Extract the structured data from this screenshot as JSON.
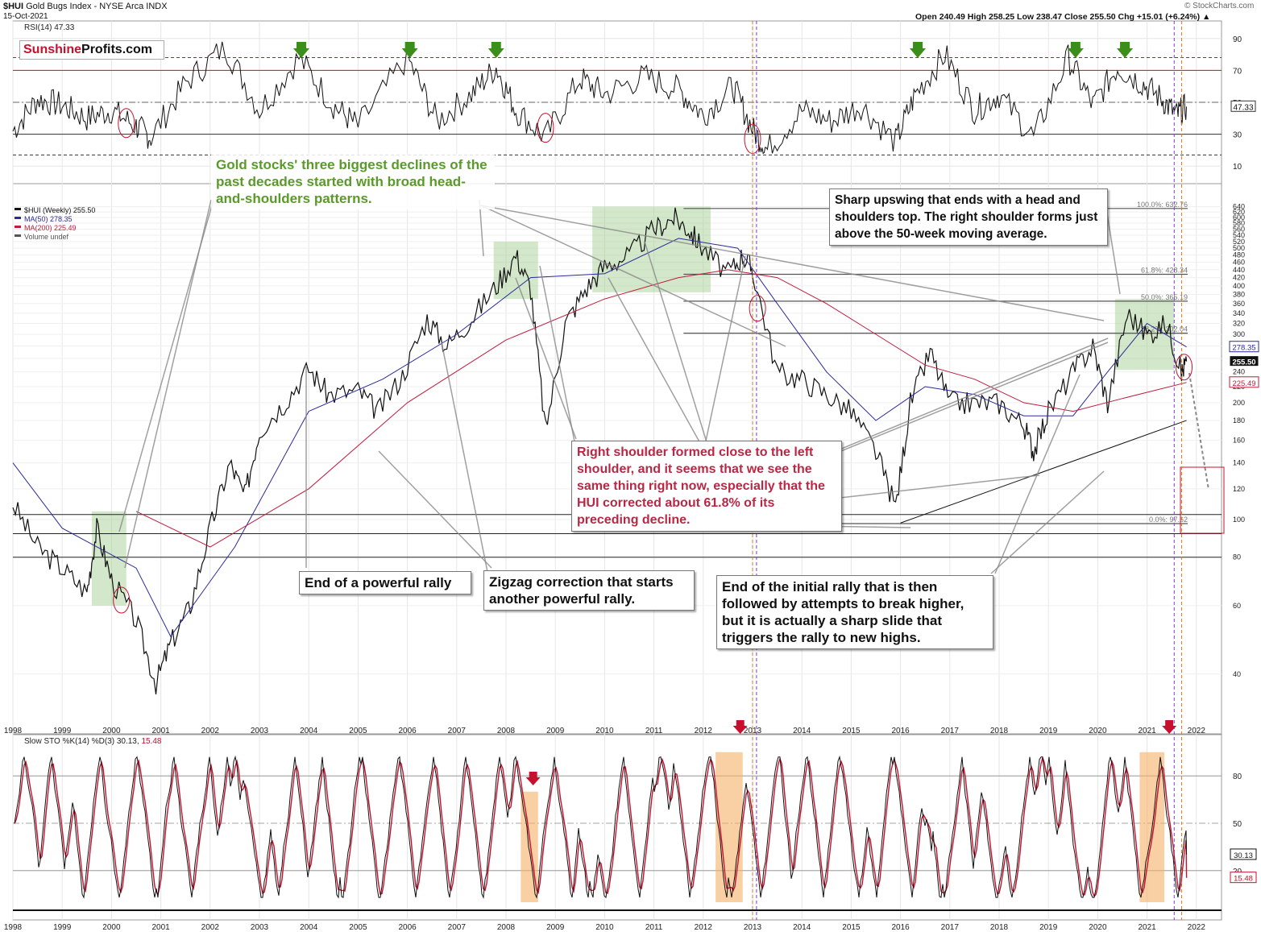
{
  "header": {
    "symbol": "$HUI",
    "name": "Gold Bugs Index - NYSE Arca INDX",
    "date": "15-Oct-2021",
    "ohlc": "Open 240.49  High 258.25  Low 238.47  Close 255.50  Chg +15.01 (+6.24%) ▲",
    "source": "© StockCharts.com"
  },
  "logo": {
    "part1": "Sunshine",
    "part2": "Profits.com"
  },
  "colors": {
    "price": "#111111",
    "ma50": "#2a2a9a",
    "ma200": "#c01c3c",
    "zone_green": "#9ec98a",
    "zone_orange": "#f5b067",
    "arrow_green": "#3a8f1a",
    "arrow_red": "#c8102e",
    "rsi": "#111111",
    "stoch_k": "#111111",
    "stoch_d": "#c8102e"
  },
  "rsi_panel": {
    "label": "RSI(14) 47.33",
    "last_value": "47.33",
    "ticks": [
      "90",
      "70",
      "50",
      "30",
      "10"
    ],
    "overbought": 70,
    "oversold": 30
  },
  "price_panel": {
    "legend": [
      "$HUI (Weekly) 255.50",
      "MA(50) 278.35",
      "MA(200) 225.49",
      "Volume undef"
    ],
    "price_ticks": [
      "640",
      "620",
      "600",
      "580",
      "560",
      "540",
      "520",
      "500",
      "480",
      "460",
      "440",
      "420",
      "400",
      "380",
      "360",
      "340",
      "320",
      "300",
      "280",
      "260",
      "240",
      "220",
      "200",
      "180",
      "160",
      "140",
      "120",
      "100",
      "80",
      "60",
      "40"
    ],
    "last_price": "255.50",
    "ma50_value": "278.35",
    "ma200_value": "225.49",
    "fib_labels": [
      "100.0%: 632.76",
      "61.8%: 428.34",
      "50.0%: 365.19",
      "38.2%: 302.04",
      "0.0%: 97.62"
    ]
  },
  "stoch_panel": {
    "label": "Slow STO %K(14) %D(3) 30.13, 15.48",
    "label_main": "Slow STO %K(14) %D(3) 30.13, ",
    "label_d": "15.48",
    "k_value": "30.13",
    "d_value": "15.48",
    "ticks": [
      "80",
      "50",
      "20"
    ]
  },
  "years": [
    "1998",
    "1999",
    "2000",
    "2001",
    "2002",
    "2003",
    "2004",
    "2005",
    "2006",
    "2007",
    "2008",
    "2009",
    "2010",
    "2011",
    "2012",
    "2013",
    "2014",
    "2015",
    "2016",
    "2017",
    "2018",
    "2019",
    "2020",
    "2021",
    "2022"
  ],
  "annotations": {
    "green_note": "Gold stocks' three biggest declines of the past decades started with broad head-and-shoulders patterns.",
    "sharp_upswing": "Sharp upswing that ends with a head and shoulders top. The right shoulder forms just above the 50-week moving average.",
    "right_shoulder": "Right shoulder formed close to the left shoulder, and it seems that we see the same thing right now, especially that the HUI corrected about 61.8% of its preceding decline.",
    "end_powerful": "End of a powerful rally",
    "zigzag": "Zigzag correction that starts another powerful rally.",
    "end_initial": "End of the initial rally that is then followed by attempts to break higher, but it is actually a sharp slide that triggers the rally to new highs."
  },
  "chart_data": {
    "type": "line",
    "title": "$HUI Gold Bugs Index - NYSE Arca INDX",
    "scale": "log",
    "x": [
      1998.0,
      1998.5,
      1999.0,
      1999.5,
      1999.7,
      2000.0,
      2000.5,
      2000.9,
      2001.2,
      2001.6,
      2002.0,
      2002.4,
      2002.7,
      2003.0,
      2003.5,
      2004.0,
      2004.4,
      2005.0,
      2005.4,
      2005.9,
      2006.4,
      2006.8,
      2007.3,
      2007.8,
      2008.2,
      2008.5,
      2008.8,
      2009.2,
      2009.6,
      2010.0,
      2010.5,
      2011.0,
      2011.4,
      2011.7,
      2012.0,
      2012.5,
      2012.8,
      2013.0,
      2013.5,
      2014.0,
      2014.5,
      2015.0,
      2015.5,
      2015.9,
      2016.2,
      2016.6,
      2017.0,
      2017.5,
      2018.0,
      2018.5,
      2018.7,
      2019.0,
      2019.5,
      2019.9,
      2020.2,
      2020.6,
      2021.0,
      2021.4,
      2021.7,
      2021.8
    ],
    "y": [
      110,
      85,
      75,
      65,
      95,
      70,
      55,
      38,
      48,
      60,
      95,
      140,
      115,
      170,
      200,
      245,
      210,
      215,
      190,
      235,
      330,
      280,
      330,
      400,
      480,
      395,
      170,
      320,
      390,
      450,
      480,
      560,
      600,
      560,
      500,
      430,
      480,
      440,
      240,
      230,
      210,
      190,
      150,
      108,
      200,
      270,
      200,
      200,
      200,
      175,
      150,
      190,
      240,
      280,
      200,
      340,
      300,
      320,
      240,
      255.5
    ],
    "ma50": {
      "x": [
        1998.0,
        1999.0,
        2000.5,
        2001.2,
        2002.5,
        2004.0,
        2005.5,
        2007.0,
        2008.5,
        2010.0,
        2011.5,
        2012.7,
        2013.5,
        2014.5,
        2015.5,
        2016.5,
        2017.5,
        2018.5,
        2019.5,
        2020.2,
        2021.0,
        2021.8
      ],
      "y": [
        140,
        95,
        75,
        50,
        85,
        190,
        230,
        300,
        420,
        430,
        530,
        500,
        360,
        240,
        180,
        220,
        210,
        185,
        185,
        240,
        320,
        278.35
      ]
    },
    "ma200": {
      "x": [
        2000.5,
        2002.0,
        2004.0,
        2006.0,
        2008.0,
        2010.0,
        2011.5,
        2012.5,
        2013.5,
        2014.5,
        2015.5,
        2016.5,
        2017.5,
        2018.5,
        2019.5,
        2020.5,
        2021.8
      ],
      "y": [
        105,
        85,
        120,
        200,
        290,
        370,
        420,
        440,
        420,
        360,
        300,
        250,
        230,
        200,
        190,
        205,
        225.49
      ]
    },
    "rsi": {
      "x": [
        1998.0,
        1998.5,
        1999.0,
        1999.5,
        2000.0,
        2000.5,
        2000.8,
        2001.5,
        2002.3,
        2003.0,
        2003.8,
        2004.5,
        2005.0,
        2006.0,
        2006.6,
        2007.3,
        2007.8,
        2008.2,
        2008.8,
        2009.5,
        2010.0,
        2010.8,
        2011.5,
        2012.0,
        2012.6,
        2013.0,
        2013.3,
        2014.0,
        2014.6,
        2015.2,
        2015.9,
        2016.3,
        2016.9,
        2017.5,
        2018.0,
        2018.7,
        2019.4,
        2019.9,
        2020.4,
        2020.9,
        2021.3,
        2021.6,
        2021.8
      ],
      "y": [
        32,
        52,
        48,
        40,
        45,
        35,
        28,
        62,
        85,
        45,
        78,
        48,
        35,
        78,
        38,
        55,
        72,
        45,
        28,
        65,
        55,
        66,
        58,
        42,
        60,
        33,
        20,
        45,
        38,
        48,
        25,
        55,
        80,
        45,
        55,
        28,
        78,
        48,
        72,
        62,
        52,
        42,
        47.33
      ]
    },
    "stoch_k": "oscillating between 2 and 95 (weekly)",
    "stoch_values": {
      "k_last": 30.13,
      "d_last": 15.48
    },
    "xlim": [
      1998,
      2022.6
    ],
    "ylim": [
      30,
      660
    ]
  }
}
